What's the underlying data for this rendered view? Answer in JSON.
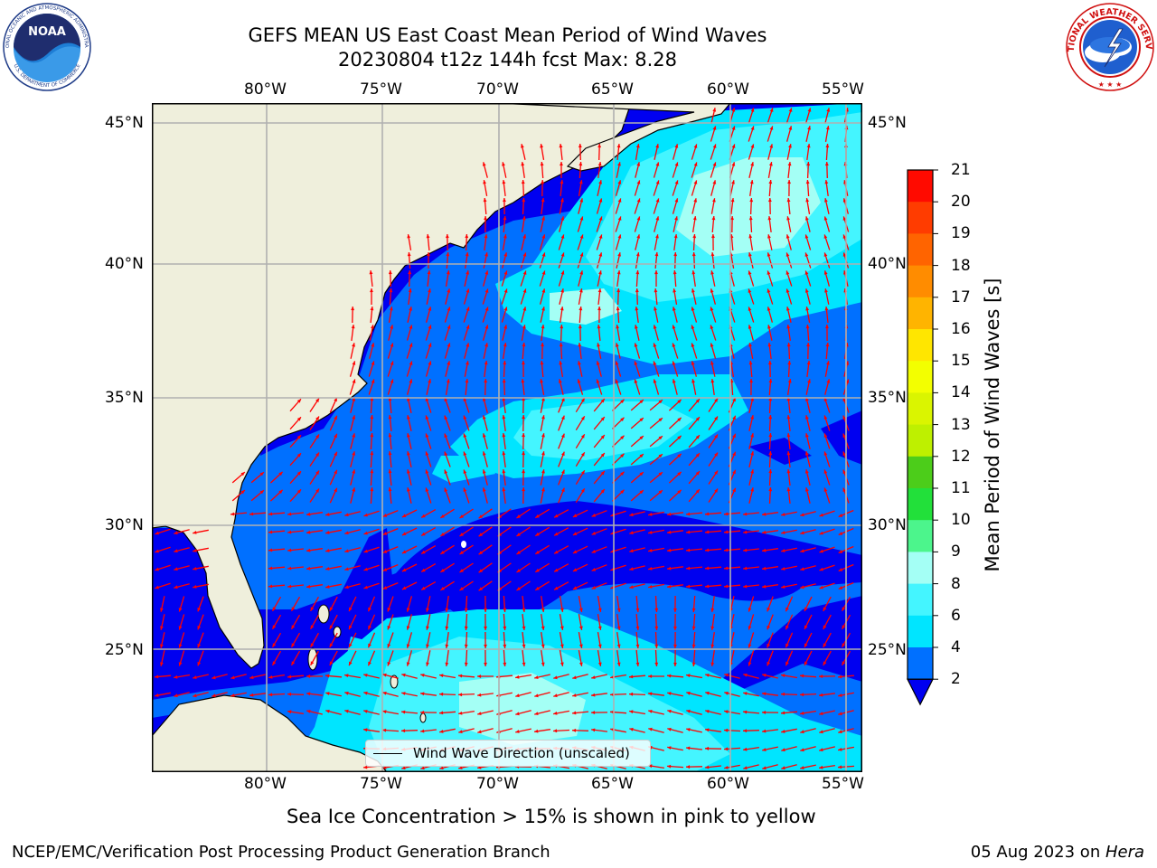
{
  "title": {
    "line1": "GEFS MEAN US East Coast Mean Period of Wind Waves",
    "line2": "20230804 t12z 144h fcst   Max: 8.28"
  },
  "logos": {
    "noaa": {
      "text": "NOAA",
      "ring": "NATIONAL OCEANIC AND ATMOSPHERIC ADMINISTRATION",
      "ring2": "U.S. DEPARTMENT OF COMMERCE"
    },
    "nws": {
      "ring": "NATIONAL WEATHER SERVICE"
    }
  },
  "map": {
    "lon_labels": [
      "80°W",
      "75°W",
      "70°W",
      "65°W",
      "60°W",
      "55°W"
    ],
    "lat_labels": [
      "45°N",
      "40°N",
      "35°N",
      "30°N",
      "25°N"
    ],
    "lon_range": [
      -85,
      -54.5
    ],
    "lat_range": [
      20.5,
      46
    ],
    "grid": true,
    "land_color": "#efefdc",
    "legend": {
      "label": "Wind Wave Direction (unscaled)",
      "placement": "lower-center"
    },
    "arrow_color": "#ff0000"
  },
  "colorbar": {
    "label": "Mean Period of Wind Waves [s]",
    "ticks": [
      "21",
      "20",
      "19",
      "18",
      "17",
      "16",
      "15",
      "14",
      "13",
      "12",
      "11",
      "10",
      "9",
      "8",
      "6",
      "4",
      "2"
    ],
    "levels": [
      {
        "label": "2-4",
        "color": "#0070ff"
      },
      {
        "label": "4-6",
        "color": "#00e5ff"
      },
      {
        "label": "6-8",
        "color": "#44f5ff"
      },
      {
        "label": "8-9",
        "color": "#a4fff5"
      },
      {
        "label": "9-10",
        "color": "#4cf58c"
      },
      {
        "label": "10-11",
        "color": "#22e03a"
      },
      {
        "label": "11-12",
        "color": "#4ccd1a"
      },
      {
        "label": "12-13",
        "color": "#bef000"
      },
      {
        "label": "13-14",
        "color": "#daf500"
      },
      {
        "label": "14-15",
        "color": "#f3ff00"
      },
      {
        "label": "15-16",
        "color": "#ffe600"
      },
      {
        "label": "16-17",
        "color": "#ffb400"
      },
      {
        "label": "17-18",
        "color": "#ff8c00"
      },
      {
        "label": "18-19",
        "color": "#ff6400"
      },
      {
        "label": "19-20",
        "color": "#ff3c00"
      },
      {
        "label": "20-21",
        "color": "#ff0a00"
      }
    ],
    "under_color": "#0000f0"
  },
  "notes": {
    "sea_ice": "Sea Ice Concentration > 15% is shown in pink to yellow"
  },
  "footer": {
    "left": "NCEP/EMC/Verification Post Processing Product Generation Branch",
    "date": "05 Aug 2023 on ",
    "machine": "Hera"
  }
}
